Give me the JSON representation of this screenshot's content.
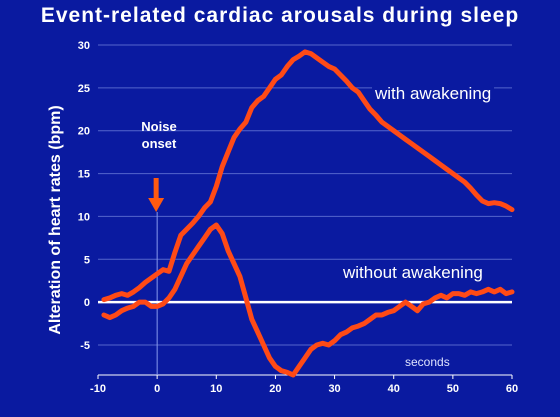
{
  "chart_data": {
    "type": "line",
    "title": "Event-related cardiac arousals during sleep",
    "ylabel": "Alteration of heart rates  (bpm)",
    "xlabel": "seconds",
    "xlim": [
      -10,
      60
    ],
    "ylim": [
      -8.5,
      30
    ],
    "xticks": [
      -10,
      0,
      10,
      20,
      30,
      40,
      50,
      60
    ],
    "yticks": [
      -5,
      0,
      5,
      10,
      15,
      20,
      25,
      30
    ],
    "grid": "horizontal",
    "reference_line": {
      "y": 0,
      "color": "#ffffff"
    },
    "annotation": {
      "text": "Noise\nonset",
      "x": 0,
      "marker": "arrow"
    },
    "series": [
      {
        "name": "with awakening",
        "color": "#ff4a16",
        "x": [
          -9,
          -8,
          -7,
          -6,
          -5,
          -4,
          -3,
          -2,
          -1,
          0,
          1,
          2,
          3,
          4,
          5,
          6,
          7,
          8,
          9,
          10,
          11,
          12,
          13,
          14,
          15,
          16,
          17,
          18,
          19,
          20,
          21,
          22,
          23,
          24,
          25,
          26,
          27,
          28,
          29,
          30,
          31,
          32,
          33,
          34,
          35,
          36,
          37,
          38,
          39,
          40,
          41,
          42,
          43,
          44,
          45,
          46,
          47,
          48,
          49,
          50,
          51,
          52,
          53,
          54,
          55,
          56,
          57,
          58,
          59,
          60
        ],
        "values": [
          0.3,
          0.5,
          0.8,
          1.0,
          0.8,
          1.2,
          1.7,
          2.3,
          2.8,
          3.3,
          3.8,
          3.6,
          5.8,
          7.8,
          8.5,
          9.2,
          10.0,
          11.0,
          11.7,
          13.5,
          15.8,
          17.5,
          19.2,
          20.2,
          21.0,
          22.7,
          23.5,
          24.0,
          25.0,
          26.0,
          26.5,
          27.5,
          28.3,
          28.7,
          29.2,
          29.0,
          28.5,
          28.0,
          27.5,
          27.2,
          26.5,
          25.8,
          25.0,
          24.5,
          23.5,
          22.5,
          21.8,
          21.0,
          20.5,
          20.0,
          19.5,
          19.0,
          18.5,
          18.0,
          17.5,
          17.0,
          16.5,
          16.0,
          15.5,
          15.0,
          14.5,
          14.0,
          13.3,
          12.5,
          11.8,
          11.5,
          11.6,
          11.5,
          11.2,
          10.8
        ]
      },
      {
        "name": "without awakening",
        "color": "#ff4a16",
        "x": [
          -9,
          -8,
          -7,
          -6,
          -5,
          -4,
          -3,
          -2,
          -1,
          0,
          1,
          2,
          3,
          4,
          5,
          6,
          7,
          8,
          9,
          10,
          11,
          12,
          13,
          14,
          15,
          16,
          17,
          18,
          19,
          20,
          21,
          22,
          23,
          24,
          25,
          26,
          27,
          28,
          29,
          30,
          31,
          32,
          33,
          34,
          35,
          36,
          37,
          38,
          39,
          40,
          41,
          42,
          43,
          44,
          45,
          46,
          47,
          48,
          49,
          50,
          51,
          52,
          53,
          54,
          55,
          56,
          57,
          58,
          59,
          60
        ],
        "values": [
          -1.5,
          -1.8,
          -1.5,
          -1.0,
          -0.7,
          -0.5,
          0.0,
          0.0,
          -0.5,
          -0.5,
          -0.2,
          0.5,
          1.5,
          3.0,
          4.5,
          5.5,
          6.5,
          7.5,
          8.5,
          9.0,
          8.0,
          6.0,
          4.5,
          3.0,
          0.5,
          -2.0,
          -3.5,
          -5.0,
          -6.5,
          -7.5,
          -8.0,
          -8.2,
          -8.5,
          -7.5,
          -6.5,
          -5.5,
          -5.0,
          -4.8,
          -5.0,
          -4.5,
          -3.8,
          -3.5,
          -3.0,
          -2.8,
          -2.5,
          -2.0,
          -1.5,
          -1.5,
          -1.2,
          -1.0,
          -0.5,
          0.0,
          -0.5,
          -1.0,
          -0.2,
          0.0,
          0.5,
          0.8,
          0.5,
          1.0,
          1.0,
          0.8,
          1.2,
          1.0,
          1.2,
          1.5,
          1.2,
          1.5,
          1.0,
          1.2
        ]
      }
    ]
  }
}
